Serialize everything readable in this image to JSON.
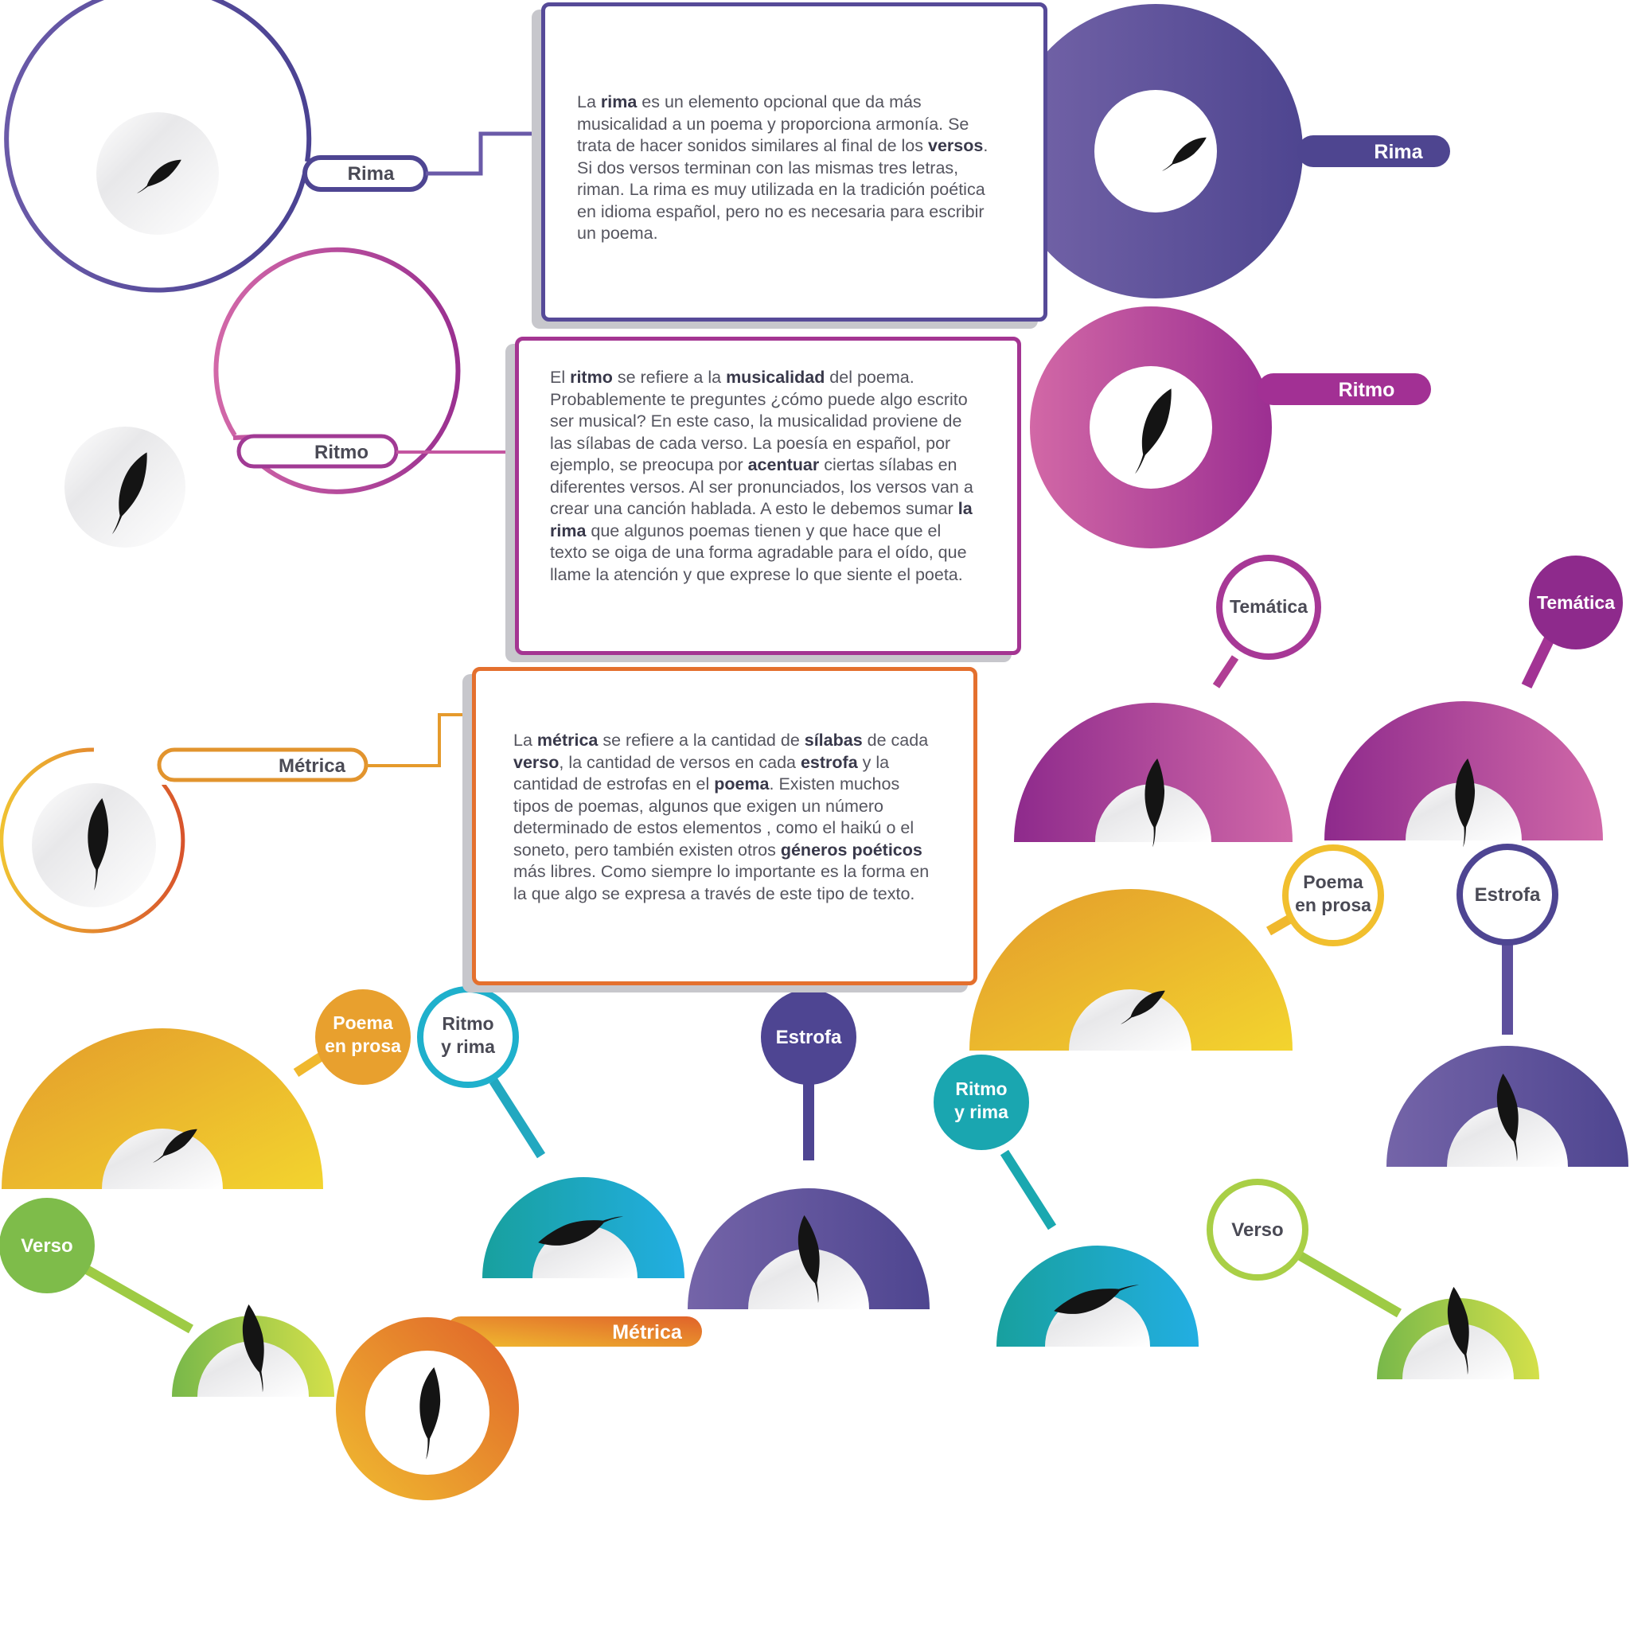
{
  "colors": {
    "purple": "#5a4a9a",
    "magenta": "#b0449a",
    "pink": "#d068a8",
    "orange": "#e4a42e",
    "yellow": "#f2d22c",
    "teal": "#1aa6b0",
    "green": "#8ec24a",
    "red_orange": "#e06b2c"
  },
  "icons": {
    "feather": "feather-icon"
  },
  "labels": {
    "rima": "Rima",
    "ritmo": "Ritmo",
    "metrica": "Métrica",
    "tematica": "Temática",
    "poema_l1": "Poema",
    "poema_l2": "en prosa",
    "ritmo_rima_l1": "Ritmo",
    "ritmo_rima_l2": "y rima",
    "estrofa": "Estrofa",
    "verso": "Verso"
  },
  "cards": {
    "rima": [
      {
        "t": "La "
      },
      {
        "b": "rima"
      },
      {
        "t": " es un elemento opcional que da más musicalidad a un poema y proporciona armonía. Se trata de hacer sonidos similares al final de los "
      },
      {
        "b": "versos"
      },
      {
        "t": ". Si dos versos terminan con las mismas tres letras, riman. La rima es muy utilizada en la tradición poética en idioma español, pero no es necesaria  para escribir un poema."
      }
    ],
    "ritmo": [
      {
        "t": "El "
      },
      {
        "b": "ritmo"
      },
      {
        "t": " se refiere a la "
      },
      {
        "b": "musicalidad"
      },
      {
        "t": " del poema. Probablemente te preguntes ¿cómo puede algo escrito ser musical? En este caso, la musicalidad proviene de las sílabas de cada verso. La poesía en español, por ejemplo, se preocupa por "
      },
      {
        "b": "acentuar"
      },
      {
        "t": " ciertas sílabas en diferentes versos. Al ser pronunciados, los versos van a crear una canción hablada. A esto le debemos sumar "
      },
      {
        "b": "la rima"
      },
      {
        "t": " que algunos poemas tienen y que hace que el texto se oiga de una forma agradable para el oído, que llame la atención y que exprese lo que siente el poeta."
      }
    ],
    "metrica": [
      {
        "t": "La "
      },
      {
        "b": "métrica"
      },
      {
        "t": " se refiere a la cantidad de "
      },
      {
        "b": "sílabas"
      },
      {
        "t": " de cada "
      },
      {
        "b": "verso"
      },
      {
        "t": ", la cantidad de versos en cada "
      },
      {
        "b": "estrofa"
      },
      {
        "t": " y la cantidad de estrofas en el "
      },
      {
        "b": "poema"
      },
      {
        "t": ". Existen muchos tipos de poemas, algunos que exigen un número determinado de estos elementos , como el haikú o el soneto, pero también existen otros "
      },
      {
        "b": "géneros poéticos"
      },
      {
        "t": " más libres. Como siempre lo importante es la forma en la que algo se expresa a través de este tipo de texto."
      }
    ]
  }
}
